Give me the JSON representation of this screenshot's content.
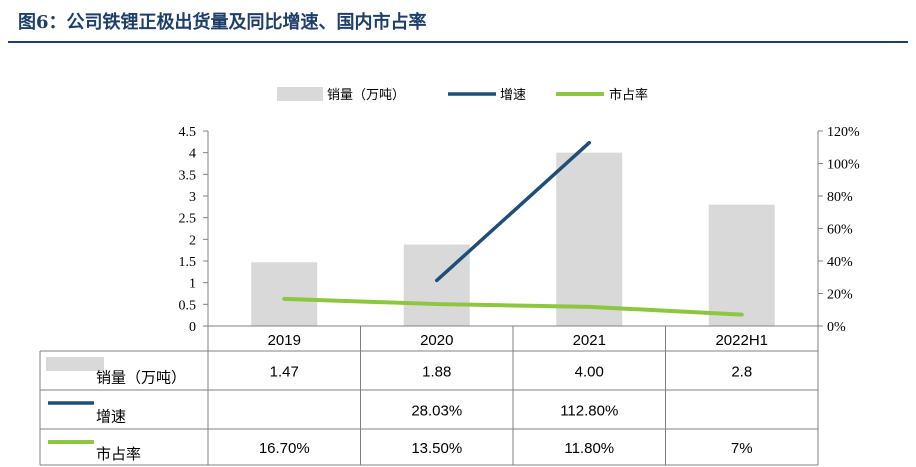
{
  "figure": {
    "title": "图6：公司铁锂正极出货量及同比增速、国内市占率"
  },
  "chart_data": {
    "type": "bar",
    "categories": [
      "2019",
      "2020",
      "2021",
      "2022H1"
    ],
    "series": [
      {
        "name": "销量（万吨）",
        "kind": "bar",
        "axis": "left",
        "values": [
          1.47,
          1.88,
          4.0,
          2.8
        ],
        "labels": [
          "1.47",
          "1.88",
          "4.00",
          "2.8"
        ],
        "color": "#d9d9d9"
      },
      {
        "name": "增速",
        "kind": "line",
        "axis": "right",
        "values": [
          null,
          28.03,
          112.8,
          null
        ],
        "labels": [
          "",
          "28.03%",
          "112.80%",
          ""
        ],
        "color": "#1f4e79"
      },
      {
        "name": "市占率",
        "kind": "line",
        "axis": "right",
        "values": [
          16.7,
          13.5,
          11.8,
          7.0
        ],
        "labels": [
          "16.70%",
          "13.50%",
          "11.80%",
          "7%"
        ],
        "color": "#8dc63f"
      }
    ],
    "y_left": {
      "min": 0,
      "max": 4.5,
      "ticks": [
        "0",
        "0.5",
        "1",
        "1.5",
        "2",
        "2.5",
        "3",
        "3.5",
        "4",
        "4.5"
      ]
    },
    "y_right": {
      "min": 0,
      "max": 120,
      "ticks": [
        "0%",
        "20%",
        "40%",
        "60%",
        "80%",
        "100%",
        "120%"
      ]
    },
    "legend_position": "top",
    "grid": false
  }
}
